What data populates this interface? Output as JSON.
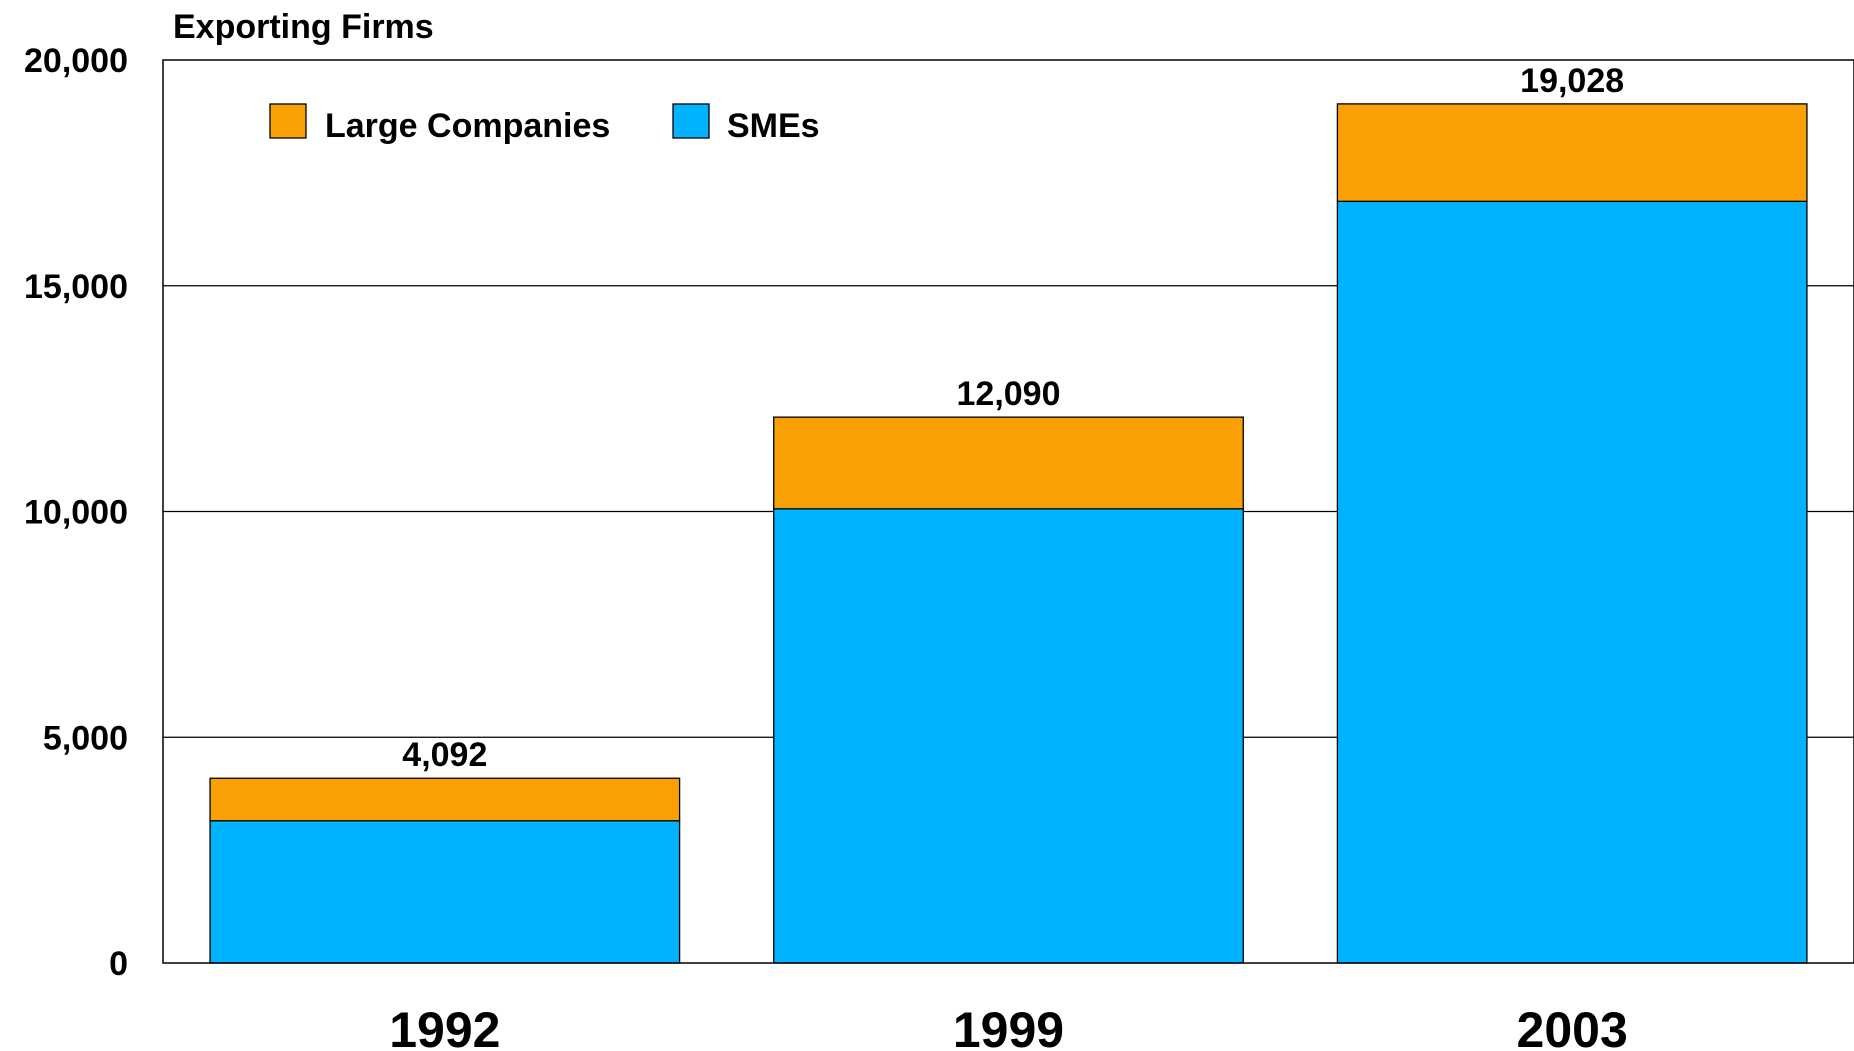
{
  "chart_data": {
    "type": "bar",
    "stacked": true,
    "title": "",
    "xlabel": "",
    "ylabel": "Exporting Firms",
    "ylim": [
      0,
      20000
    ],
    "yticks": [
      0,
      5000,
      10000,
      15000,
      20000
    ],
    "ytick_labels": [
      "0",
      "5,000",
      "10,000",
      "15,000",
      "20,000"
    ],
    "categories": [
      "1992",
      "1999",
      "2003"
    ],
    "series": [
      {
        "name": "SMEs",
        "color": "#00B2FF",
        "values": [
          3150,
          10060,
          16870
        ]
      },
      {
        "name": "Large Companies",
        "color": "#F9A004",
        "values": [
          942,
          2030,
          2158
        ]
      }
    ],
    "totals": [
      4092,
      12090,
      19028
    ],
    "total_labels": [
      "4,092",
      "12,090",
      "19,028"
    ],
    "legend": {
      "position": "top-left",
      "order": [
        "Large Companies",
        "SMEs"
      ]
    },
    "grid": {
      "y": true,
      "x": false
    },
    "grid_color": "#000000",
    "bar_outline_color": "#000000"
  }
}
